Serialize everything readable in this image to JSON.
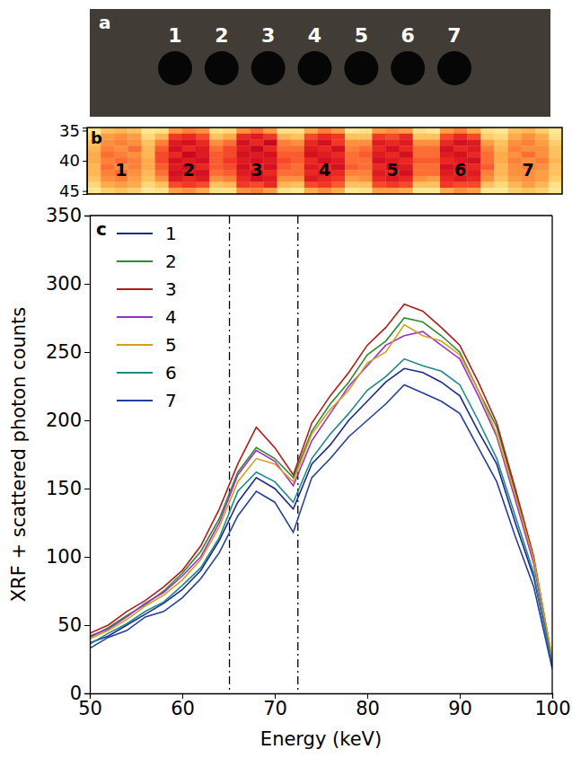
{
  "chart_data": [
    {
      "type": "photo",
      "panel": "a",
      "labels": [
        "1",
        "2",
        "3",
        "4",
        "5",
        "6",
        "7"
      ]
    },
    {
      "type": "heatmap",
      "panel": "b",
      "labels": [
        "1",
        "2",
        "3",
        "4",
        "5",
        "6",
        "7"
      ],
      "y": [
        35,
        36,
        37,
        38,
        39,
        40,
        41,
        42,
        43,
        44,
        45
      ],
      "ylim": [
        34.5,
        45.5
      ],
      "yticks": [
        35,
        40,
        45
      ],
      "tick_labels": "y",
      "zlim": [
        0,
        1
      ],
      "z": [
        [
          0.1,
          0.3,
          0.35,
          0.3,
          0.1,
          0.15,
          0.45,
          0.55,
          0.5,
          0.15,
          0.2,
          0.5,
          0.6,
          0.45,
          0.15,
          0.15,
          0.4,
          0.55,
          0.45,
          0.1,
          0.15,
          0.45,
          0.5,
          0.45,
          0.15,
          0.1,
          0.45,
          0.55,
          0.4,
          0.15,
          0.1,
          0.3,
          0.35,
          0.25,
          0.1
        ],
        [
          0.2,
          0.45,
          0.5,
          0.45,
          0.2,
          0.35,
          0.75,
          0.8,
          0.7,
          0.3,
          0.4,
          0.8,
          0.85,
          0.75,
          0.35,
          0.3,
          0.7,
          0.8,
          0.75,
          0.3,
          0.3,
          0.75,
          0.7,
          0.8,
          0.3,
          0.3,
          0.7,
          0.8,
          0.7,
          0.25,
          0.2,
          0.4,
          0.5,
          0.4,
          0.15
        ],
        [
          0.3,
          0.5,
          0.55,
          0.5,
          0.3,
          0.55,
          0.85,
          0.9,
          0.8,
          0.5,
          0.6,
          0.9,
          0.8,
          0.95,
          0.55,
          0.5,
          0.8,
          0.9,
          0.75,
          0.5,
          0.5,
          0.85,
          0.8,
          0.85,
          0.5,
          0.5,
          0.8,
          0.9,
          0.85,
          0.45,
          0.3,
          0.5,
          0.55,
          0.45,
          0.25
        ],
        [
          0.35,
          0.55,
          0.5,
          0.6,
          0.35,
          0.65,
          0.9,
          0.8,
          0.85,
          0.6,
          0.7,
          0.85,
          0.95,
          0.8,
          0.6,
          0.6,
          0.85,
          0.8,
          0.9,
          0.55,
          0.6,
          0.8,
          0.9,
          0.8,
          0.6,
          0.6,
          0.9,
          0.8,
          0.85,
          0.55,
          0.35,
          0.55,
          0.5,
          0.5,
          0.3
        ],
        [
          0.4,
          0.6,
          0.55,
          0.5,
          0.35,
          0.7,
          0.8,
          0.95,
          0.85,
          0.65,
          0.7,
          0.9,
          0.85,
          0.9,
          0.65,
          0.65,
          0.9,
          0.85,
          0.8,
          0.6,
          0.65,
          0.85,
          0.8,
          0.9,
          0.6,
          0.6,
          0.85,
          0.9,
          0.8,
          0.6,
          0.4,
          0.5,
          0.6,
          0.5,
          0.3
        ],
        [
          0.4,
          0.55,
          0.6,
          0.55,
          0.4,
          0.7,
          0.9,
          0.85,
          0.9,
          0.65,
          0.75,
          0.85,
          0.9,
          0.85,
          0.7,
          0.65,
          0.8,
          0.9,
          0.85,
          0.6,
          0.6,
          0.9,
          0.85,
          0.8,
          0.65,
          0.65,
          0.8,
          0.85,
          0.9,
          0.6,
          0.4,
          0.55,
          0.5,
          0.55,
          0.35
        ],
        [
          0.35,
          0.6,
          0.5,
          0.55,
          0.4,
          0.65,
          0.85,
          0.9,
          0.8,
          0.65,
          0.7,
          0.9,
          0.8,
          0.9,
          0.65,
          0.6,
          0.85,
          0.8,
          0.9,
          0.65,
          0.6,
          0.8,
          0.9,
          0.85,
          0.6,
          0.6,
          0.9,
          0.85,
          0.8,
          0.65,
          0.35,
          0.5,
          0.55,
          0.5,
          0.3
        ],
        [
          0.35,
          0.55,
          0.6,
          0.5,
          0.35,
          0.6,
          0.9,
          0.85,
          0.9,
          0.6,
          0.65,
          0.85,
          0.9,
          0.8,
          0.6,
          0.6,
          0.8,
          0.85,
          0.8,
          0.55,
          0.55,
          0.85,
          0.8,
          0.9,
          0.6,
          0.6,
          0.85,
          0.8,
          0.85,
          0.55,
          0.35,
          0.5,
          0.5,
          0.45,
          0.3
        ],
        [
          0.3,
          0.5,
          0.55,
          0.45,
          0.3,
          0.5,
          0.85,
          0.8,
          0.85,
          0.5,
          0.55,
          0.8,
          0.9,
          0.85,
          0.5,
          0.5,
          0.85,
          0.8,
          0.75,
          0.45,
          0.5,
          0.8,
          0.85,
          0.8,
          0.5,
          0.45,
          0.8,
          0.85,
          0.8,
          0.5,
          0.3,
          0.45,
          0.5,
          0.45,
          0.25
        ],
        [
          0.2,
          0.4,
          0.45,
          0.4,
          0.2,
          0.3,
          0.7,
          0.75,
          0.7,
          0.3,
          0.35,
          0.75,
          0.7,
          0.8,
          0.35,
          0.3,
          0.7,
          0.75,
          0.65,
          0.3,
          0.3,
          0.7,
          0.75,
          0.7,
          0.3,
          0.3,
          0.75,
          0.7,
          0.7,
          0.3,
          0.2,
          0.35,
          0.45,
          0.35,
          0.15
        ],
        [
          0.1,
          0.25,
          0.3,
          0.25,
          0.1,
          0.15,
          0.45,
          0.5,
          0.4,
          0.15,
          0.15,
          0.5,
          0.55,
          0.45,
          0.15,
          0.1,
          0.4,
          0.5,
          0.4,
          0.1,
          0.15,
          0.45,
          0.45,
          0.4,
          0.1,
          0.1,
          0.4,
          0.5,
          0.45,
          0.1,
          0.1,
          0.25,
          0.3,
          0.25,
          0.1
        ]
      ]
    },
    {
      "type": "line",
      "panel": "c",
      "x_label": "Energy (keV)",
      "y_label": "XRF + scattered photon counts",
      "xlim": [
        50,
        100
      ],
      "xticks": [
        50,
        60,
        70,
        80,
        90,
        100
      ],
      "ylim": [
        0,
        350
      ],
      "yticks": [
        0,
        50,
        100,
        150,
        200,
        250,
        300,
        350
      ],
      "legend": "upper left",
      "vlines": [
        65.1,
        72.5
      ],
      "line_style": "dashdot",
      "x": [
        50,
        52,
        54,
        56,
        58,
        60,
        62,
        64,
        66,
        68,
        70,
        72,
        74,
        76,
        78,
        80,
        82,
        84,
        86,
        88,
        90,
        92,
        94,
        96,
        98,
        100
      ],
      "series": [
        {
          "name": "1",
          "color": "#1c2a8c",
          "values": [
            37,
            42,
            50,
            58,
            66,
            76,
            90,
            112,
            140,
            158,
            150,
            135,
            168,
            182,
            200,
            214,
            228,
            238,
            235,
            228,
            218,
            192,
            168,
            125,
            85,
            22
          ]
        },
        {
          "name": "2",
          "color": "#2e8b2e",
          "values": [
            41,
            48,
            57,
            65,
            75,
            88,
            104,
            128,
            162,
            180,
            172,
            158,
            192,
            212,
            228,
            248,
            258,
            275,
            272,
            262,
            250,
            222,
            195,
            148,
            96,
            25
          ]
        },
        {
          "name": "3",
          "color": "#b01c1c",
          "values": [
            44,
            50,
            60,
            68,
            78,
            90,
            108,
            135,
            168,
            195,
            180,
            160,
            198,
            218,
            235,
            255,
            268,
            285,
            280,
            268,
            255,
            228,
            198,
            150,
            100,
            24
          ]
        },
        {
          "name": "4",
          "color": "#9b30c8",
          "values": [
            42,
            47,
            56,
            66,
            74,
            86,
            100,
            125,
            160,
            178,
            170,
            152,
            185,
            205,
            225,
            240,
            255,
            262,
            265,
            255,
            245,
            218,
            188,
            142,
            95,
            24
          ]
        },
        {
          "name": "5",
          "color": "#d4a020",
          "values": [
            40,
            46,
            54,
            64,
            72,
            83,
            98,
            122,
            155,
            172,
            168,
            155,
            190,
            208,
            222,
            242,
            250,
            270,
            262,
            258,
            248,
            222,
            190,
            145,
            98,
            26
          ]
        },
        {
          "name": "6",
          "color": "#1f8a8a",
          "values": [
            36,
            44,
            51,
            60,
            67,
            79,
            92,
            114,
            148,
            162,
            155,
            140,
            172,
            190,
            205,
            222,
            232,
            245,
            240,
            236,
            226,
            200,
            172,
            130,
            88,
            20
          ]
        },
        {
          "name": "7",
          "color": "#253f9b",
          "values": [
            33,
            41,
            46,
            56,
            60,
            70,
            84,
            103,
            130,
            148,
            140,
            118,
            158,
            172,
            188,
            200,
            212,
            226,
            220,
            214,
            205,
            180,
            155,
            115,
            78,
            18
          ]
        }
      ]
    }
  ]
}
